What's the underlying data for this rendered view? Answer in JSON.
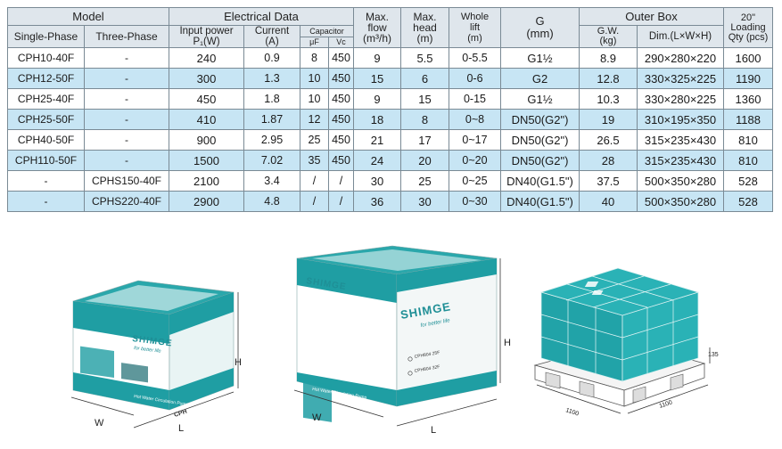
{
  "table": {
    "header": {
      "model": "Model",
      "single_phase": "Single-Phase",
      "three_phase": "Three-Phase",
      "electrical_data": "Electrical Data",
      "input_power_line1": "Input power",
      "input_power_line2": "P₁(W)",
      "current_line1": "Current",
      "current_line2": "(A)",
      "capacitor": "Capacitor",
      "capacitor_uf": "μF",
      "capacitor_vc": "Vc",
      "max_flow_line1": "Max.",
      "max_flow_line2": "flow",
      "max_flow_line3": "(m³/h)",
      "max_head_line1": "Max.",
      "max_head_line2": "head",
      "max_head_line3": "(m)",
      "whole_lift_line1": "Whole",
      "whole_lift_line2": "lift",
      "whole_lift_line3": "(m)",
      "g_line1": "G",
      "g_line2": "(mm)",
      "outer_box": "Outer Box",
      "gw_line1": "G.W.",
      "gw_line2": "(kg)",
      "dim": "Dim.(L×W×H)",
      "loading_line1": "20\"",
      "loading_line2": "Loading",
      "loading_line3": "Qty (pcs)"
    },
    "rows": [
      {
        "single": "CPH10-40F",
        "three": "-",
        "power": "240",
        "current": "0.9",
        "uf": "8",
        "vc": "450",
        "flow": "9",
        "head": "5.5",
        "lift": "0-5.5",
        "g": "G1½",
        "gw": "8.9",
        "dim": "290×280×220",
        "qty": "1600"
      },
      {
        "single": "CPH12-50F",
        "three": "-",
        "power": "300",
        "current": "1.3",
        "uf": "10",
        "vc": "450",
        "flow": "15",
        "head": "6",
        "lift": "0-6",
        "g": "G2",
        "gw": "12.8",
        "dim": "330×325×225",
        "qty": "1190"
      },
      {
        "single": "CPH25-40F",
        "three": "-",
        "power": "450",
        "current": "1.8",
        "uf": "10",
        "vc": "450",
        "flow": "9",
        "head": "15",
        "lift": "0-15",
        "g": "G1½",
        "gw": "10.3",
        "dim": "330×280×225",
        "qty": "1360"
      },
      {
        "single": "CPH25-50F",
        "three": "-",
        "power": "410",
        "current": "1.87",
        "uf": "12",
        "vc": "450",
        "flow": "18",
        "head": "8",
        "lift": "0~8",
        "g": "DN50(G2\")",
        "gw": "19",
        "dim": "310×195×350",
        "qty": "1188"
      },
      {
        "single": "CPH40-50F",
        "three": "-",
        "power": "900",
        "current": "2.95",
        "uf": "25",
        "vc": "450",
        "flow": "21",
        "head": "17",
        "lift": "0~17",
        "g": "DN50(G2\")",
        "gw": "26.5",
        "dim": "315×235×430",
        "qty": "810"
      },
      {
        "single": "CPH110-50F",
        "three": "-",
        "power": "1500",
        "current": "7.02",
        "uf": "35",
        "vc": "450",
        "flow": "24",
        "head": "20",
        "lift": "0~20",
        "g": "DN50(G2\")",
        "gw": "28",
        "dim": "315×235×430",
        "qty": "810"
      },
      {
        "single": "-",
        "three": "CPHS150-40F",
        "power": "2100",
        "current": "3.4",
        "uf": "/",
        "vc": "/",
        "flow": "30",
        "head": "25",
        "lift": "0~25",
        "g": "DN40(G1.5\")",
        "gw": "37.5",
        "dim": "500×350×280",
        "qty": "528"
      },
      {
        "single": "-",
        "three": "CPHS220-40F",
        "power": "2900",
        "current": "4.8",
        "uf": "/",
        "vc": "/",
        "flow": "36",
        "head": "30",
        "lift": "0~30",
        "g": "DN40(G1.5\")",
        "gw": "40",
        "dim": "500×350×280",
        "qty": "528"
      }
    ]
  },
  "packaging": {
    "small_box": {
      "brand": "SHIMGE",
      "tagline": "for better life",
      "side_label": "CPH",
      "front_footer": "Hot Water Circulation Pump",
      "dim_h": "H",
      "dim_w": "W",
      "dim_l": "L"
    },
    "medium_box": {
      "brand": "SHIMGE",
      "tagline": "for better life",
      "model_a": "CPH804 25F",
      "model_b": "CPH804 32F",
      "front_footer": "Hot Water Circulation Pump",
      "dim_h": "H",
      "dim_w": "W",
      "dim_l": "L"
    },
    "pallet": {
      "length_a": "1100",
      "length_b": "1100",
      "height": "135"
    },
    "colors": {
      "teal": "#1f9ea3",
      "teal_dark": "#157b80",
      "table_alt_row": "#c7e5f4",
      "table_header": "#dfe6ec"
    }
  }
}
